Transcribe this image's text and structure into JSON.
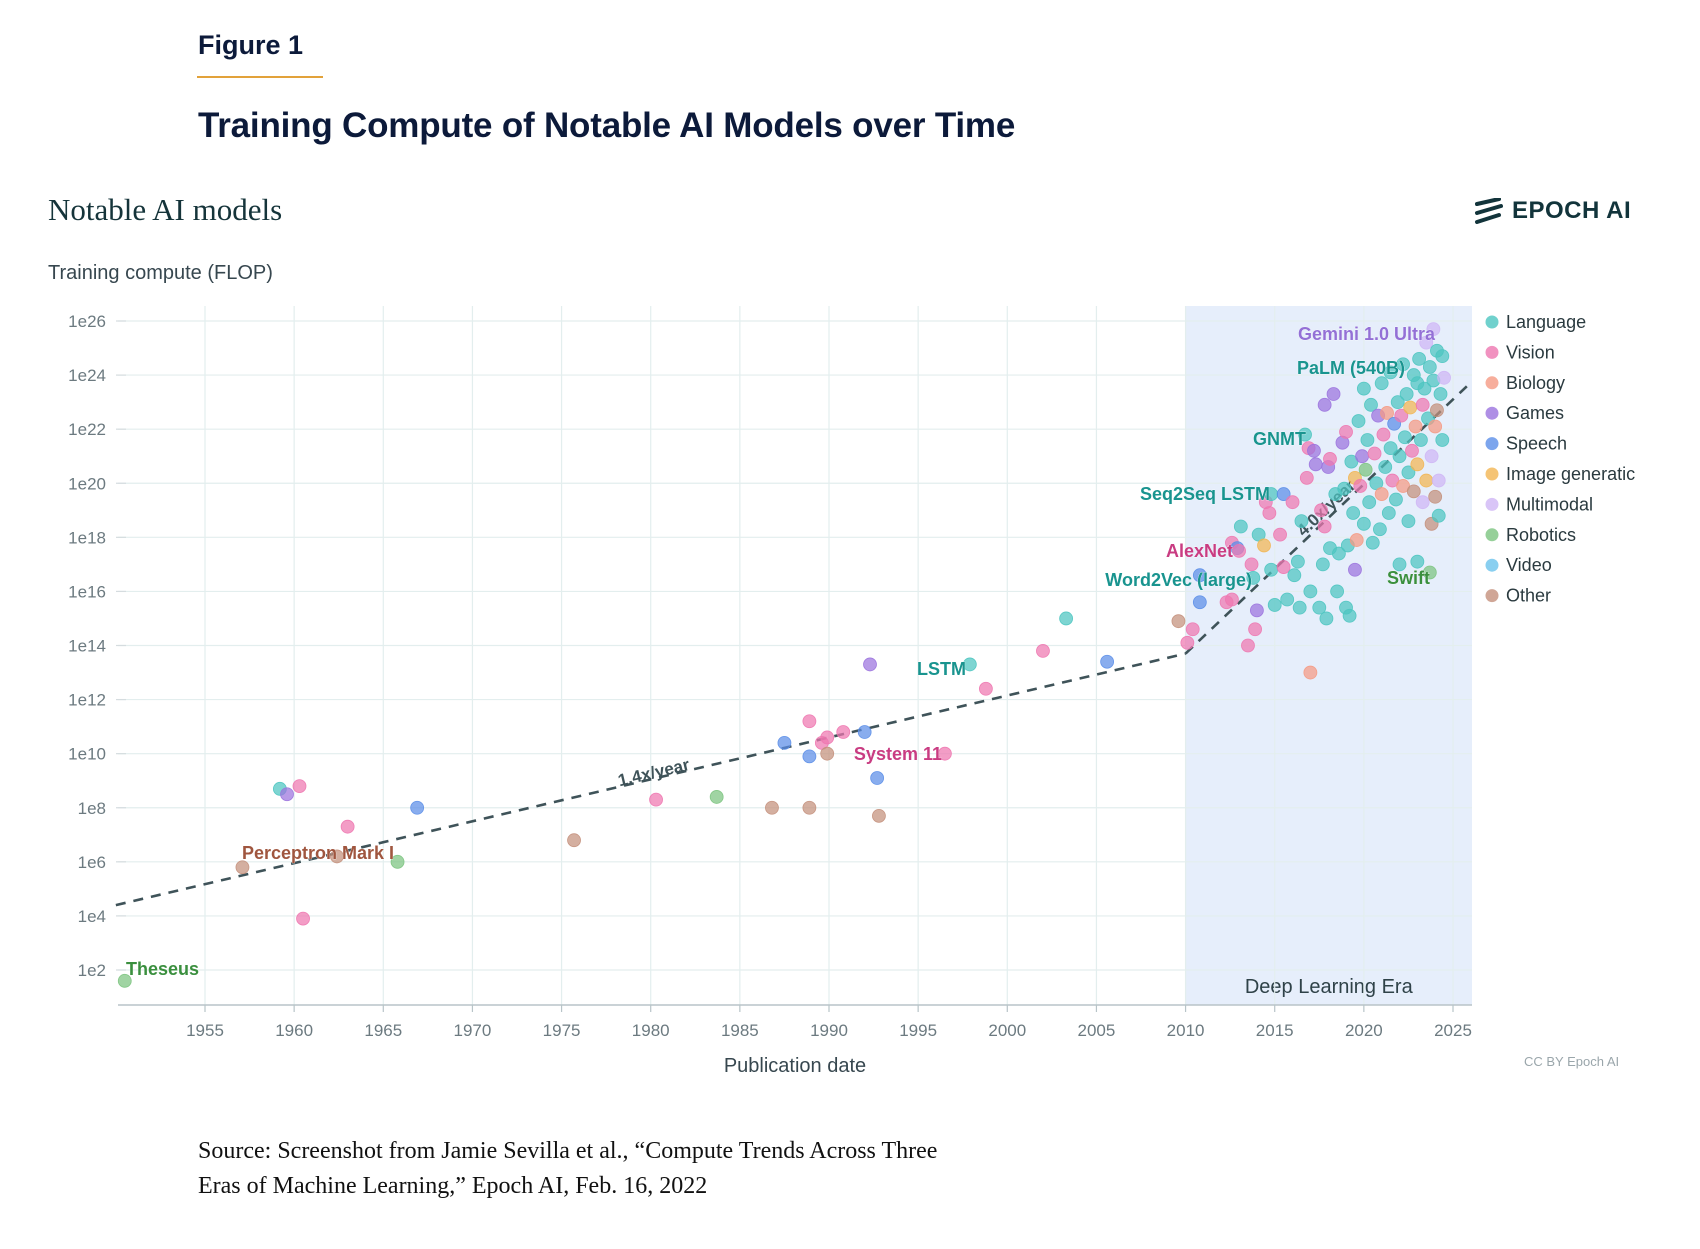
{
  "figure": {
    "label": "Figure 1",
    "title": "Training Compute of Notable AI Models over Time",
    "source_line1": "Source: Screenshot from Jamie Sevilla et al., “Compute Trends Across Three",
    "source_line2": "Eras of Machine Learning,” Epoch AI, Feb. 16, 2022"
  },
  "header": {
    "chart_heading": "Notable AI models",
    "logo_text": "EPOCH AI",
    "credit": "CC BY Epoch AI"
  },
  "colors": {
    "Language": "#4cc5c0",
    "Vision": "#ee77b0",
    "Biology": "#f59a83",
    "Games": "#9b73de",
    "Speech": "#5b8ee8",
    "Image generation": "#f2b552",
    "Multimodal": "#cfb6f5",
    "Robotics": "#7cc47f",
    "Video": "#6cc3ec",
    "Other": "#c4907c",
    "era_band": "#e6eefb",
    "trend": "#3f5359"
  },
  "chart_data": {
    "type": "scatter",
    "title": "Notable AI models",
    "xlabel": "Publication date",
    "ylabel": "Training compute (FLOP)",
    "yscale": "log10",
    "xlim": [
      1950,
      2025.8
    ],
    "ylim_log10": [
      0.8,
      26.5
    ],
    "x_ticks": [
      1955,
      1960,
      1965,
      1970,
      1975,
      1980,
      1985,
      1990,
      1995,
      2000,
      2005,
      2010,
      2015,
      2020,
      2025
    ],
    "x_tick_labels": [
      "1955",
      "1960",
      "1965",
      "1970",
      "1975",
      "1980",
      "1985",
      "1990",
      "1995",
      "2000",
      "2005",
      "2010",
      "2015",
      "2020",
      "2025"
    ],
    "y_ticks_log10": [
      2,
      4,
      6,
      8,
      10,
      12,
      14,
      16,
      18,
      20,
      22,
      24,
      26
    ],
    "y_tick_labels": [
      "1e2",
      "1e4",
      "1e6",
      "1e8",
      "1e10",
      "1e12",
      "1e14",
      "1e16",
      "1e18",
      "1e20",
      "1e22",
      "1e24",
      "1e26"
    ],
    "grid": true,
    "legend_position": "right",
    "legend": [
      "Language",
      "Vision",
      "Biology",
      "Games",
      "Speech",
      "Image generatic",
      "Multimodal",
      "Robotics",
      "Video",
      "Other"
    ],
    "legend_keys": [
      "Language",
      "Vision",
      "Biology",
      "Games",
      "Speech",
      "Image generation",
      "Multimodal",
      "Robotics",
      "Video",
      "Other"
    ],
    "era_band": {
      "label": "Deep Learning Era",
      "x_start": 2010,
      "x_end": 2025.8
    },
    "trends": [
      {
        "label": "1.4x/year",
        "x": [
          1950,
          2010
        ],
        "y_log10": [
          4.4,
          13.7
        ]
      },
      {
        "label": "4.0x/year",
        "x": [
          2010,
          2025.8
        ],
        "y_log10": [
          13.7,
          23.6
        ]
      }
    ],
    "annotations": [
      {
        "text": "Theseus",
        "x": 1950.5,
        "y_log10": 1.6,
        "category": "Robotics"
      },
      {
        "text": "Perceptron Mark I",
        "x": 1957.0,
        "y_log10": 5.8,
        "category": "Other"
      },
      {
        "text": "LSTM",
        "x": 1997.9,
        "y_log10": 13.3,
        "category": "Language"
      },
      {
        "text": "System 11",
        "x": 1996.5,
        "y_log10": 10.0,
        "category": "Vision"
      },
      {
        "text": "Word2Vec (large)",
        "x": 2013.0,
        "y_log10": 16.5,
        "category": "Language"
      },
      {
        "text": "AlexNet",
        "x": 2012.6,
        "y_log10": 17.7,
        "category": "Vision"
      },
      {
        "text": "Seq2Seq LSTM",
        "x": 2014.8,
        "y_log10": 19.6,
        "category": "Language"
      },
      {
        "text": "GNMT",
        "x": 2016.7,
        "y_log10": 21.8,
        "category": "Language"
      },
      {
        "text": "PaLM (540B)",
        "x": 2022.3,
        "y_log10": 24.4,
        "category": "Language"
      },
      {
        "text": "Gemini 1.0 Ultra",
        "x": 2023.9,
        "y_log10": 25.7,
        "category": "Multimodal"
      },
      {
        "text": "Swift",
        "x": 2023.7,
        "y_log10": 16.7,
        "category": "Robotics"
      }
    ],
    "points": [
      {
        "x": 1950.5,
        "y": 1.6,
        "c": "Robotics"
      },
      {
        "x": 1957.1,
        "y": 5.8,
        "c": "Other"
      },
      {
        "x": 1959.2,
        "y": 8.7,
        "c": "Language"
      },
      {
        "x": 1959.6,
        "y": 8.5,
        "c": "Games"
      },
      {
        "x": 1960.3,
        "y": 8.8,
        "c": "Vision"
      },
      {
        "x": 1960.5,
        "y": 3.9,
        "c": "Vision"
      },
      {
        "x": 1962.4,
        "y": 6.2,
        "c": "Other"
      },
      {
        "x": 1963.0,
        "y": 7.3,
        "c": "Vision"
      },
      {
        "x": 1965.8,
        "y": 6.0,
        "c": "Robotics"
      },
      {
        "x": 1966.9,
        "y": 8.0,
        "c": "Speech"
      },
      {
        "x": 1975.7,
        "y": 6.8,
        "c": "Other"
      },
      {
        "x": 1980.3,
        "y": 8.3,
        "c": "Vision"
      },
      {
        "x": 1983.7,
        "y": 8.4,
        "c": "Robotics"
      },
      {
        "x": 1986.8,
        "y": 8.0,
        "c": "Other"
      },
      {
        "x": 1987.5,
        "y": 10.4,
        "c": "Speech"
      },
      {
        "x": 1988.9,
        "y": 11.2,
        "c": "Vision"
      },
      {
        "x": 1988.9,
        "y": 9.9,
        "c": "Speech"
      },
      {
        "x": 1988.9,
        "y": 8.0,
        "c": "Other"
      },
      {
        "x": 1989.6,
        "y": 10.4,
        "c": "Vision"
      },
      {
        "x": 1989.9,
        "y": 10.6,
        "c": "Vision"
      },
      {
        "x": 1989.9,
        "y": 10.0,
        "c": "Other"
      },
      {
        "x": 1990.8,
        "y": 10.8,
        "c": "Vision"
      },
      {
        "x": 1992.0,
        "y": 10.8,
        "c": "Speech"
      },
      {
        "x": 1992.3,
        "y": 13.3,
        "c": "Games"
      },
      {
        "x": 1992.7,
        "y": 9.1,
        "c": "Speech"
      },
      {
        "x": 1992.8,
        "y": 7.7,
        "c": "Other"
      },
      {
        "x": 1997.9,
        "y": 13.3,
        "c": "Language"
      },
      {
        "x": 1996.5,
        "y": 10.0,
        "c": "Vision"
      },
      {
        "x": 1998.8,
        "y": 12.4,
        "c": "Vision"
      },
      {
        "x": 2002.0,
        "y": 13.8,
        "c": "Vision"
      },
      {
        "x": 2003.3,
        "y": 15.0,
        "c": "Language"
      },
      {
        "x": 2005.6,
        "y": 13.4,
        "c": "Speech"
      },
      {
        "x": 2009.6,
        "y": 14.9,
        "c": "Other"
      },
      {
        "x": 2010.1,
        "y": 14.1,
        "c": "Vision"
      },
      {
        "x": 2010.4,
        "y": 14.6,
        "c": "Vision"
      },
      {
        "x": 2010.8,
        "y": 15.6,
        "c": "Speech"
      },
      {
        "x": 2010.8,
        "y": 16.6,
        "c": "Speech"
      },
      {
        "x": 2012.3,
        "y": 15.6,
        "c": "Vision"
      },
      {
        "x": 2012.6,
        "y": 15.7,
        "c": "Vision"
      },
      {
        "x": 2012.6,
        "y": 17.8,
        "c": "Vision"
      },
      {
        "x": 2012.9,
        "y": 17.6,
        "c": "Speech"
      },
      {
        "x": 2013.0,
        "y": 17.5,
        "c": "Vision"
      },
      {
        "x": 2013.1,
        "y": 18.4,
        "c": "Language"
      },
      {
        "x": 2013.5,
        "y": 14.0,
        "c": "Vision"
      },
      {
        "x": 2013.7,
        "y": 17.0,
        "c": "Vision"
      },
      {
        "x": 2013.8,
        "y": 16.5,
        "c": "Language"
      },
      {
        "x": 2013.9,
        "y": 14.6,
        "c": "Vision"
      },
      {
        "x": 2014.0,
        "y": 15.3,
        "c": "Games"
      },
      {
        "x": 2014.1,
        "y": 18.1,
        "c": "Language"
      },
      {
        "x": 2014.4,
        "y": 17.7,
        "c": "Image generation"
      },
      {
        "x": 2014.5,
        "y": 19.3,
        "c": "Vision"
      },
      {
        "x": 2014.7,
        "y": 18.9,
        "c": "Vision"
      },
      {
        "x": 2014.8,
        "y": 19.6,
        "c": "Language"
      },
      {
        "x": 2014.8,
        "y": 16.8,
        "c": "Language"
      },
      {
        "x": 2015.0,
        "y": 15.5,
        "c": "Language"
      },
      {
        "x": 2015.3,
        "y": 18.1,
        "c": "Vision"
      },
      {
        "x": 2015.5,
        "y": 19.6,
        "c": "Speech"
      },
      {
        "x": 2015.5,
        "y": 16.9,
        "c": "Vision"
      },
      {
        "x": 2015.7,
        "y": 15.7,
        "c": "Language"
      },
      {
        "x": 2016.0,
        "y": 19.3,
        "c": "Vision"
      },
      {
        "x": 2016.1,
        "y": 16.6,
        "c": "Language"
      },
      {
        "x": 2016.3,
        "y": 17.1,
        "c": "Language"
      },
      {
        "x": 2016.4,
        "y": 15.4,
        "c": "Language"
      },
      {
        "x": 2016.5,
        "y": 18.6,
        "c": "Language"
      },
      {
        "x": 2016.7,
        "y": 21.8,
        "c": "Language"
      },
      {
        "x": 2016.8,
        "y": 20.2,
        "c": "Vision"
      },
      {
        "x": 2016.9,
        "y": 21.3,
        "c": "Vision"
      },
      {
        "x": 2017.0,
        "y": 16.0,
        "c": "Language"
      },
      {
        "x": 2017.0,
        "y": 13.0,
        "c": "Biology"
      },
      {
        "x": 2017.2,
        "y": 21.2,
        "c": "Games"
      },
      {
        "x": 2017.3,
        "y": 20.7,
        "c": "Games"
      },
      {
        "x": 2017.5,
        "y": 15.4,
        "c": "Language"
      },
      {
        "x": 2017.6,
        "y": 19.0,
        "c": "Vision"
      },
      {
        "x": 2017.7,
        "y": 17.0,
        "c": "Language"
      },
      {
        "x": 2017.8,
        "y": 22.9,
        "c": "Games"
      },
      {
        "x": 2017.8,
        "y": 18.4,
        "c": "Vision"
      },
      {
        "x": 2017.9,
        "y": 15.0,
        "c": "Language"
      },
      {
        "x": 2018.0,
        "y": 20.6,
        "c": "Games"
      },
      {
        "x": 2018.1,
        "y": 20.9,
        "c": "Vision"
      },
      {
        "x": 2018.1,
        "y": 17.6,
        "c": "Language"
      },
      {
        "x": 2018.3,
        "y": 23.3,
        "c": "Games"
      },
      {
        "x": 2018.4,
        "y": 19.6,
        "c": "Language"
      },
      {
        "x": 2018.5,
        "y": 16.0,
        "c": "Language"
      },
      {
        "x": 2018.6,
        "y": 17.4,
        "c": "Language"
      },
      {
        "x": 2018.8,
        "y": 21.5,
        "c": "Games"
      },
      {
        "x": 2018.9,
        "y": 19.8,
        "c": "Language"
      },
      {
        "x": 2019.0,
        "y": 15.4,
        "c": "Language"
      },
      {
        "x": 2019.0,
        "y": 21.9,
        "c": "Vision"
      },
      {
        "x": 2019.1,
        "y": 17.7,
        "c": "Language"
      },
      {
        "x": 2019.2,
        "y": 15.1,
        "c": "Language"
      },
      {
        "x": 2019.3,
        "y": 20.8,
        "c": "Language"
      },
      {
        "x": 2019.4,
        "y": 18.9,
        "c": "Language"
      },
      {
        "x": 2019.5,
        "y": 20.2,
        "c": "Image generation"
      },
      {
        "x": 2019.5,
        "y": 16.8,
        "c": "Games"
      },
      {
        "x": 2019.6,
        "y": 17.9,
        "c": "Biology"
      },
      {
        "x": 2019.7,
        "y": 22.3,
        "c": "Language"
      },
      {
        "x": 2019.8,
        "y": 19.9,
        "c": "Vision"
      },
      {
        "x": 2019.9,
        "y": 21.0,
        "c": "Games"
      },
      {
        "x": 2020.0,
        "y": 23.5,
        "c": "Language"
      },
      {
        "x": 2020.0,
        "y": 18.5,
        "c": "Language"
      },
      {
        "x": 2020.1,
        "y": 20.5,
        "c": "Robotics"
      },
      {
        "x": 2020.2,
        "y": 21.6,
        "c": "Language"
      },
      {
        "x": 2020.3,
        "y": 19.3,
        "c": "Language"
      },
      {
        "x": 2020.4,
        "y": 22.9,
        "c": "Language"
      },
      {
        "x": 2020.5,
        "y": 17.8,
        "c": "Language"
      },
      {
        "x": 2020.6,
        "y": 21.1,
        "c": "Vision"
      },
      {
        "x": 2020.7,
        "y": 20.0,
        "c": "Language"
      },
      {
        "x": 2020.8,
        "y": 22.5,
        "c": "Games"
      },
      {
        "x": 2020.9,
        "y": 18.3,
        "c": "Language"
      },
      {
        "x": 2021.0,
        "y": 23.7,
        "c": "Language"
      },
      {
        "x": 2021.0,
        "y": 19.6,
        "c": "Biology"
      },
      {
        "x": 2021.1,
        "y": 21.8,
        "c": "Vision"
      },
      {
        "x": 2021.2,
        "y": 20.6,
        "c": "Language"
      },
      {
        "x": 2021.3,
        "y": 22.6,
        "c": "Biology"
      },
      {
        "x": 2021.4,
        "y": 18.9,
        "c": "Language"
      },
      {
        "x": 2021.5,
        "y": 21.3,
        "c": "Language"
      },
      {
        "x": 2021.5,
        "y": 24.1,
        "c": "Language"
      },
      {
        "x": 2021.6,
        "y": 20.1,
        "c": "Vision"
      },
      {
        "x": 2021.7,
        "y": 22.2,
        "c": "Speech"
      },
      {
        "x": 2021.8,
        "y": 19.4,
        "c": "Language"
      },
      {
        "x": 2021.9,
        "y": 23.0,
        "c": "Language"
      },
      {
        "x": 2022.0,
        "y": 21.0,
        "c": "Language"
      },
      {
        "x": 2022.0,
        "y": 17.0,
        "c": "Language"
      },
      {
        "x": 2022.1,
        "y": 22.5,
        "c": "Vision"
      },
      {
        "x": 2022.2,
        "y": 24.4,
        "c": "Language"
      },
      {
        "x": 2022.2,
        "y": 19.9,
        "c": "Biology"
      },
      {
        "x": 2022.3,
        "y": 21.7,
        "c": "Language"
      },
      {
        "x": 2022.4,
        "y": 23.3,
        "c": "Language"
      },
      {
        "x": 2022.5,
        "y": 20.4,
        "c": "Language"
      },
      {
        "x": 2022.5,
        "y": 18.6,
        "c": "Language"
      },
      {
        "x": 2022.6,
        "y": 22.8,
        "c": "Image generation"
      },
      {
        "x": 2022.7,
        "y": 21.2,
        "c": "Vision"
      },
      {
        "x": 2022.8,
        "y": 24.0,
        "c": "Language"
      },
      {
        "x": 2022.8,
        "y": 19.7,
        "c": "Other"
      },
      {
        "x": 2022.9,
        "y": 22.1,
        "c": "Biology"
      },
      {
        "x": 2023.0,
        "y": 23.7,
        "c": "Language"
      },
      {
        "x": 2023.0,
        "y": 20.7,
        "c": "Image generation"
      },
      {
        "x": 2023.0,
        "y": 17.1,
        "c": "Language"
      },
      {
        "x": 2023.1,
        "y": 24.6,
        "c": "Language"
      },
      {
        "x": 2023.2,
        "y": 21.6,
        "c": "Language"
      },
      {
        "x": 2023.3,
        "y": 22.9,
        "c": "Vision"
      },
      {
        "x": 2023.3,
        "y": 19.3,
        "c": "Multimodal"
      },
      {
        "x": 2023.4,
        "y": 23.5,
        "c": "Language"
      },
      {
        "x": 2023.5,
        "y": 20.1,
        "c": "Image generation"
      },
      {
        "x": 2023.5,
        "y": 25.2,
        "c": "Multimodal"
      },
      {
        "x": 2023.6,
        "y": 22.4,
        "c": "Language"
      },
      {
        "x": 2023.7,
        "y": 24.3,
        "c": "Language"
      },
      {
        "x": 2023.7,
        "y": 16.7,
        "c": "Robotics"
      },
      {
        "x": 2023.8,
        "y": 18.5,
        "c": "Other"
      },
      {
        "x": 2023.8,
        "y": 21.0,
        "c": "Multimodal"
      },
      {
        "x": 2023.9,
        "y": 25.7,
        "c": "Multimodal"
      },
      {
        "x": 2023.9,
        "y": 23.8,
        "c": "Language"
      },
      {
        "x": 2024.0,
        "y": 22.1,
        "c": "Biology"
      },
      {
        "x": 2024.0,
        "y": 19.5,
        "c": "Other"
      },
      {
        "x": 2024.1,
        "y": 24.9,
        "c": "Language"
      },
      {
        "x": 2024.1,
        "y": 22.7,
        "c": "Other"
      },
      {
        "x": 2024.2,
        "y": 20.1,
        "c": "Multimodal"
      },
      {
        "x": 2024.2,
        "y": 18.8,
        "c": "Language"
      },
      {
        "x": 2024.3,
        "y": 23.3,
        "c": "Language"
      },
      {
        "x": 2024.4,
        "y": 24.7,
        "c": "Language"
      },
      {
        "x": 2024.4,
        "y": 21.6,
        "c": "Language"
      },
      {
        "x": 2024.5,
        "y": 23.9,
        "c": "Multimodal"
      }
    ]
  }
}
